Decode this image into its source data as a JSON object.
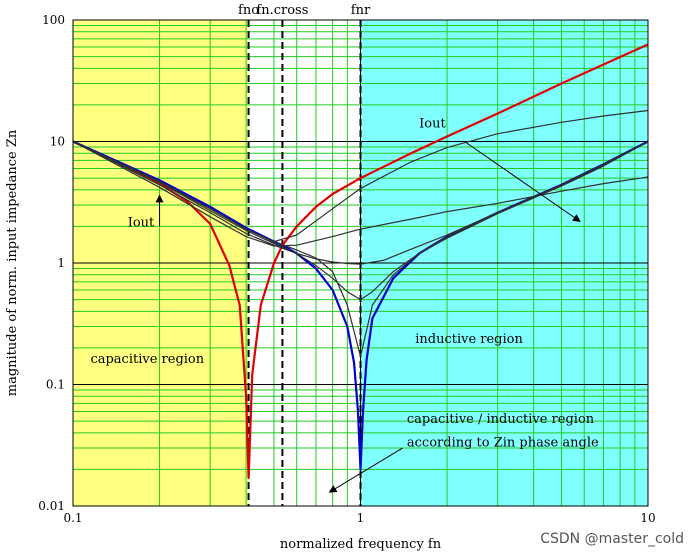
{
  "chart_data": {
    "type": "line",
    "xlabel": "normalized frequency fn",
    "ylabel": "magnitude of norm. input impedance Zn",
    "x_scale": "log",
    "y_scale": "log",
    "xlim": [
      0.1,
      10
    ],
    "ylim": [
      0.01,
      100
    ],
    "grid": true,
    "x_ticks": [
      {
        "value": 0.1,
        "label": "0.1"
      },
      {
        "value": 1,
        "label": "1"
      },
      {
        "value": 10,
        "label": "10"
      }
    ],
    "y_ticks": [
      {
        "value": 0.01,
        "label": "0.01"
      },
      {
        "value": 0.1,
        "label": "0.1"
      },
      {
        "value": 1,
        "label": "1"
      },
      {
        "value": 10,
        "label": "10"
      },
      {
        "value": 100,
        "label": "100"
      }
    ],
    "regions": [
      {
        "label": "capacitive region",
        "x_from": 0.1,
        "x_to": 0.408,
        "color": "#ffff80"
      },
      {
        "label": "",
        "x_from": 0.408,
        "x_to": 1,
        "color": "#ffffff"
      },
      {
        "label": "inductive region",
        "x_from": 1,
        "x_to": 10,
        "color": "#80ffff"
      }
    ],
    "markers": [
      {
        "label": "fno",
        "x": 0.408
      },
      {
        "label": "fn.cross",
        "x": 0.535
      },
      {
        "label": "fnr",
        "x": 1.0
      }
    ],
    "series": [
      {
        "color": "#e00000",
        "x": [
          0.1,
          0.15,
          0.2,
          0.25,
          0.3,
          0.35,
          0.38,
          0.4,
          0.408,
          0.42,
          0.45,
          0.5,
          0.535,
          0.6,
          0.7,
          0.8,
          1.0,
          1.5,
          2,
          3,
          5,
          7,
          10
        ],
        "y": [
          10,
          6.4,
          4.5,
          3.2,
          2.1,
          0.95,
          0.45,
          0.08,
          0.017,
          0.12,
          0.45,
          1.0,
          1.4,
          2.0,
          2.9,
          3.7,
          5.0,
          8.0,
          11,
          17,
          30,
          43,
          63
        ]
      },
      {
        "color": "#0000d0",
        "x": [
          0.1,
          0.2,
          0.3,
          0.4,
          0.5,
          0.535,
          0.6,
          0.7,
          0.8,
          0.9,
          0.95,
          0.98,
          1.0,
          1.02,
          1.05,
          1.1,
          1.3,
          1.6,
          2,
          3,
          5,
          7,
          10
        ],
        "y": [
          10,
          4.8,
          2.9,
          1.95,
          1.5,
          1.4,
          1.2,
          0.9,
          0.6,
          0.3,
          0.15,
          0.06,
          0.02,
          0.06,
          0.16,
          0.35,
          0.75,
          1.2,
          1.65,
          2.6,
          4.4,
          6.5,
          10
        ]
      },
      {
        "color": "#303030",
        "x": [
          0.1,
          0.2,
          0.3,
          0.4,
          0.5,
          0.6,
          0.7,
          0.8,
          0.9,
          1.0,
          1.1,
          1.3,
          1.6,
          2,
          3,
          5,
          7,
          10
        ],
        "y": [
          10,
          4.7,
          2.8,
          1.9,
          1.5,
          1.28,
          1.1,
          0.85,
          0.45,
          0.17,
          0.45,
          0.8,
          1.2,
          1.65,
          2.6,
          4.4,
          6.5,
          10
        ]
      },
      {
        "color": "#303030",
        "x": [
          0.1,
          0.2,
          0.3,
          0.4,
          0.5,
          0.6,
          0.7,
          0.8,
          0.9,
          1.0,
          1.1,
          1.3,
          1.6,
          2,
          3,
          5,
          7,
          10
        ],
        "y": [
          10,
          4.6,
          2.7,
          1.85,
          1.45,
          1.2,
          0.95,
          0.75,
          0.58,
          0.5,
          0.58,
          0.85,
          1.2,
          1.6,
          2.55,
          4.3,
          6.3,
          10
        ]
      },
      {
        "color": "#303030",
        "x": [
          0.1,
          0.2,
          0.3,
          0.4,
          0.5,
          0.6,
          0.7,
          0.8,
          0.9,
          1.0,
          1.2,
          1.5,
          2,
          3,
          5,
          7,
          10
        ],
        "y": [
          10,
          4.4,
          2.6,
          1.75,
          1.4,
          1.2,
          1.08,
          1.02,
          0.99,
          0.98,
          1.05,
          1.3,
          1.7,
          2.6,
          4.3,
          6.3,
          10
        ]
      },
      {
        "color": "#303030",
        "x": [
          0.1,
          0.2,
          0.3,
          0.4,
          0.5,
          0.6,
          0.8,
          1.0,
          1.5,
          2,
          3,
          5,
          7,
          10
        ],
        "y": [
          10,
          4.2,
          2.4,
          1.65,
          1.38,
          1.4,
          1.65,
          1.9,
          2.3,
          2.65,
          3.1,
          3.9,
          4.5,
          5.1
        ]
      },
      {
        "color": "#303030",
        "x": [
          0.1,
          0.2,
          0.3,
          0.4,
          0.5,
          0.6,
          0.8,
          1.0,
          1.5,
          2,
          3,
          5,
          7,
          10
        ],
        "y": [
          10,
          4.6,
          2.8,
          1.9,
          1.5,
          1.7,
          2.8,
          4.1,
          6.8,
          8.9,
          11.6,
          14.4,
          16.2,
          18
        ]
      }
    ],
    "annotations": [
      {
        "text": "Iout",
        "x": 0.155,
        "y": 2.0,
        "arrow_from": [
          0.2,
          2.0
        ],
        "arrow_to": [
          0.2,
          3.6
        ]
      },
      {
        "text": "Iout",
        "x": 1.6,
        "y": 13,
        "arrow_from": [
          2.3,
          10
        ],
        "arrow_to": [
          5.8,
          2.2
        ]
      },
      {
        "text": "capacitive region",
        "x": 0.115,
        "y": 0.15
      },
      {
        "text": "inductive region",
        "x": 1.55,
        "y": 0.22
      },
      {
        "text": "capacitive / inductive region",
        "x": 1.45,
        "y": 0.048
      },
      {
        "text": "according to Zin phase angle",
        "x": 1.45,
        "y": 0.031,
        "arrow_from": [
          1.4,
          0.03
        ],
        "arrow_to": [
          0.78,
          0.013
        ]
      }
    ]
  },
  "watermark": "CSDN @master_cold"
}
